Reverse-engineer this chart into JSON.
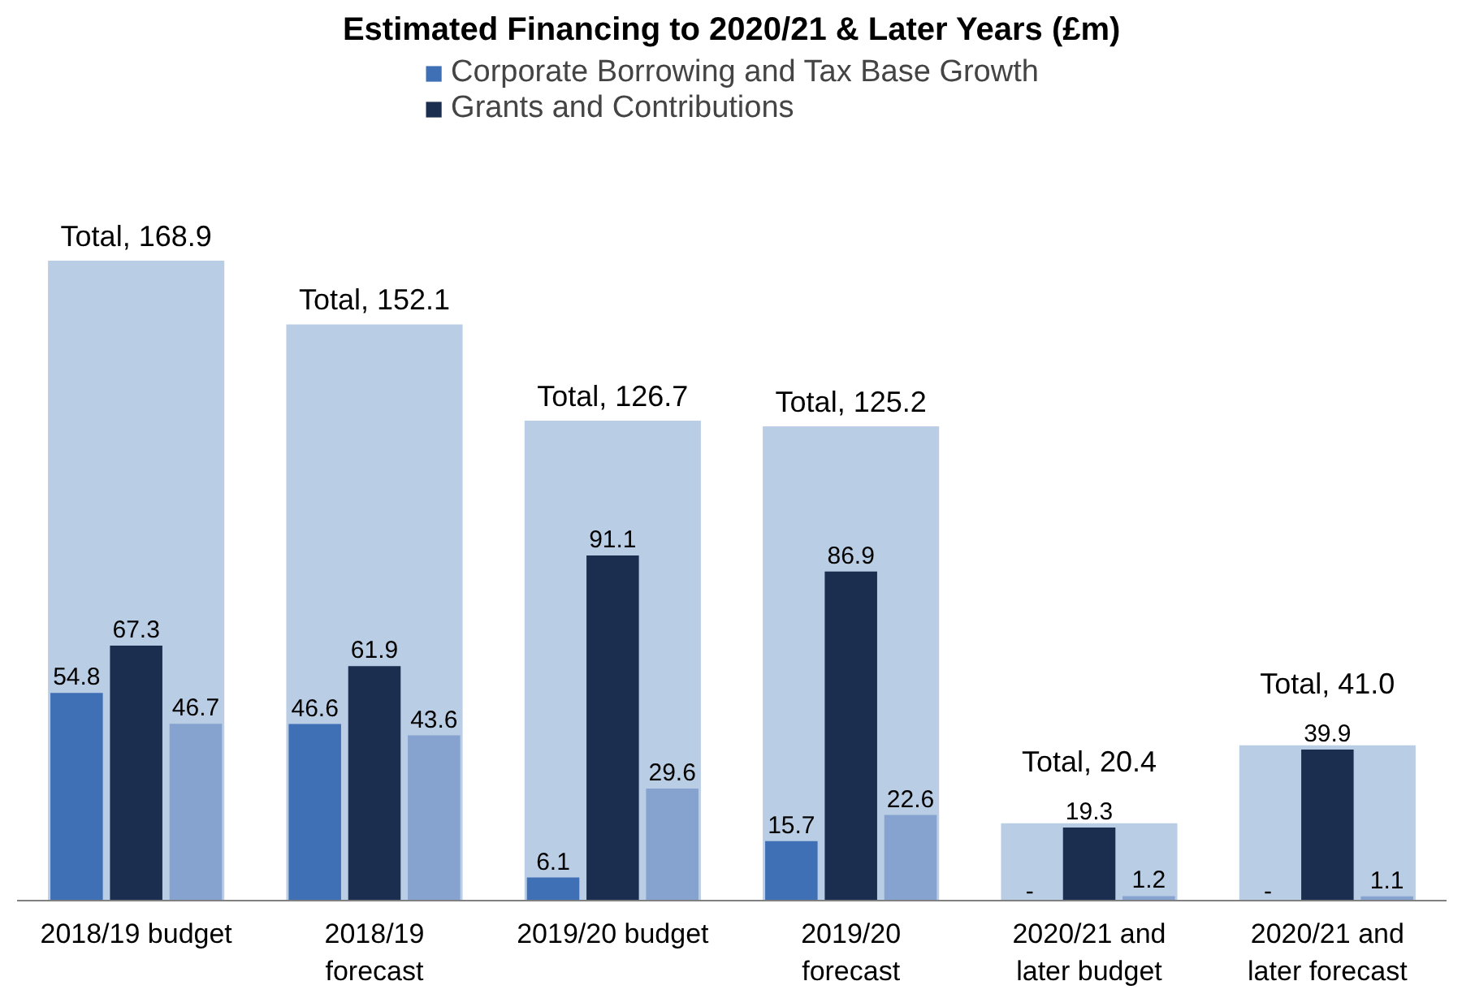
{
  "chart_data": {
    "type": "bar",
    "title": "Estimated Financing to 2020/21 & Later Years (£m)",
    "categories": [
      "2018/19 budget",
      "2018/19 forecast",
      "2019/20 budget",
      "2019/20 forecast",
      "2020/21 and later budget",
      "2020/21 and later forecast"
    ],
    "series": [
      {
        "color": "#b9cde5",
        "values": [
          168.9,
          152.1,
          126.7,
          125.2,
          20.4,
          41.0
        ],
        "value_labels": [
          "Total, 168.9",
          "Total, 152.1",
          "Total, 126.7",
          "Total, 125.2",
          "Total, 20.4",
          "Total, 41.0"
        ]
      },
      {
        "name": "Corporate Borrowing and Tax Base Growth",
        "color": "#3f6fb5",
        "values": [
          54.8,
          46.6,
          6.1,
          15.7,
          null,
          null
        ],
        "value_labels": [
          "54.8",
          "46.6",
          "6.1",
          "15.7",
          "-",
          "-"
        ]
      },
      {
        "name": "Grants and Contributions",
        "color": "#1c2e4f",
        "values": [
          67.3,
          61.9,
          91.1,
          86.9,
          19.3,
          39.9
        ],
        "value_labels": [
          "67.3",
          "61.9",
          "91.1",
          "86.9",
          "19.3",
          "39.9"
        ]
      },
      {
        "color": "#86a3cf",
        "values": [
          46.7,
          43.6,
          29.6,
          22.6,
          1.2,
          1.1
        ],
        "value_labels": [
          "46.7",
          "43.6",
          "29.6",
          "22.6",
          "1.2",
          "1.1"
        ]
      }
    ],
    "legend": "top"
  }
}
